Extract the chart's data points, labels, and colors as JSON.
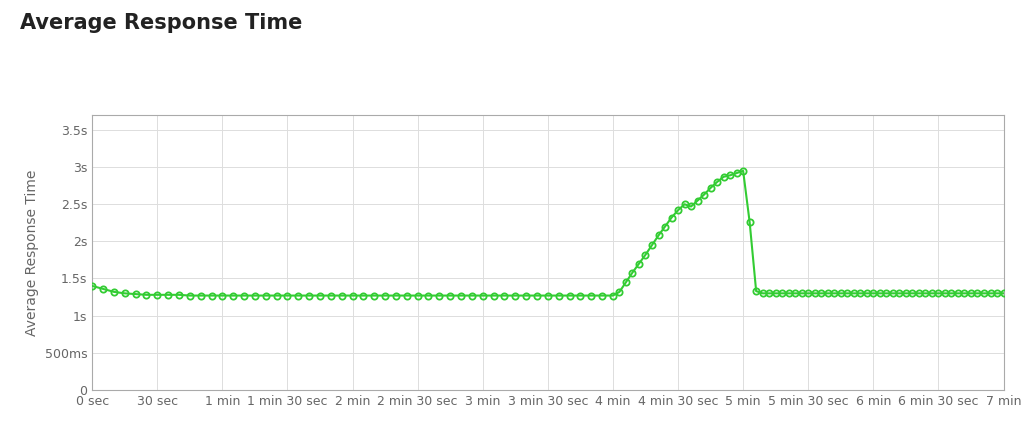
{
  "title": "Average Response Time",
  "ylabel": "Average Response Time",
  "background_color": "#ffffff",
  "plot_background": "#ffffff",
  "grid_color": "#dddddd",
  "line_color": "#33cc33",
  "marker_color": "#33cc33",
  "ylim": [
    0,
    3.7
  ],
  "xlim": [
    0,
    420
  ],
  "yticks": [
    0,
    0.5,
    1.0,
    1.5,
    2.0,
    2.5,
    3.0,
    3.5
  ],
  "ytick_labels": [
    "0",
    "500ms",
    "1s",
    "1.5s",
    "2s",
    "2.5s",
    "3s",
    "3.5s"
  ],
  "xticks": [
    0,
    30,
    60,
    90,
    120,
    150,
    180,
    210,
    240,
    270,
    300,
    330,
    360,
    390,
    420
  ],
  "xtick_labels": [
    "0 sec",
    "30 sec",
    "1 min",
    "1 min 30 sec",
    "2 min",
    "2 min 30 sec",
    "3 min",
    "3 min 30 sec",
    "4 min",
    "4 min 30 sec",
    "5 min",
    "5 min 30 sec",
    "6 min",
    "6 min 30 sec",
    "7 min"
  ],
  "title_fontsize": 15,
  "axis_label_fontsize": 10,
  "tick_fontsize": 9,
  "data_x": [
    0,
    5,
    10,
    15,
    20,
    25,
    30,
    35,
    40,
    45,
    50,
    55,
    60,
    65,
    70,
    75,
    80,
    85,
    90,
    95,
    100,
    105,
    110,
    115,
    120,
    125,
    130,
    135,
    140,
    145,
    150,
    155,
    160,
    165,
    170,
    175,
    180,
    185,
    190,
    195,
    200,
    205,
    210,
    215,
    220,
    225,
    230,
    235,
    240,
    243,
    246,
    249,
    252,
    255,
    258,
    261,
    264,
    267,
    270,
    273,
    276,
    279,
    282,
    285,
    288,
    291,
    294,
    297,
    300,
    303,
    306,
    309,
    312,
    315,
    318,
    321,
    324,
    327,
    330,
    333,
    336,
    339,
    342,
    345,
    348,
    351,
    354,
    357,
    360,
    363,
    366,
    369,
    372,
    375,
    378,
    381,
    384,
    387,
    390,
    393,
    396,
    399,
    402,
    405,
    408,
    411,
    414,
    417,
    420
  ],
  "data_y": [
    1.4,
    1.36,
    1.32,
    1.3,
    1.29,
    1.28,
    1.28,
    1.28,
    1.28,
    1.27,
    1.27,
    1.27,
    1.27,
    1.27,
    1.27,
    1.27,
    1.27,
    1.27,
    1.27,
    1.27,
    1.27,
    1.27,
    1.27,
    1.27,
    1.27,
    1.27,
    1.27,
    1.27,
    1.27,
    1.27,
    1.27,
    1.27,
    1.27,
    1.27,
    1.27,
    1.27,
    1.27,
    1.27,
    1.27,
    1.27,
    1.27,
    1.27,
    1.27,
    1.27,
    1.27,
    1.27,
    1.27,
    1.27,
    1.27,
    1.32,
    1.45,
    1.58,
    1.7,
    1.82,
    1.95,
    2.08,
    2.2,
    2.32,
    2.42,
    2.5,
    2.47,
    2.55,
    2.63,
    2.72,
    2.8,
    2.87,
    2.89,
    2.92,
    2.95,
    2.26,
    1.33,
    1.3,
    1.3,
    1.3,
    1.3,
    1.3,
    1.3,
    1.3,
    1.3,
    1.3,
    1.3,
    1.3,
    1.3,
    1.3,
    1.3,
    1.3,
    1.3,
    1.3,
    1.3,
    1.3,
    1.3,
    1.3,
    1.3,
    1.3,
    1.3,
    1.3,
    1.3,
    1.3,
    1.3,
    1.3,
    1.3,
    1.3,
    1.3,
    1.3,
    1.3,
    1.3,
    1.3,
    1.3,
    1.3
  ]
}
